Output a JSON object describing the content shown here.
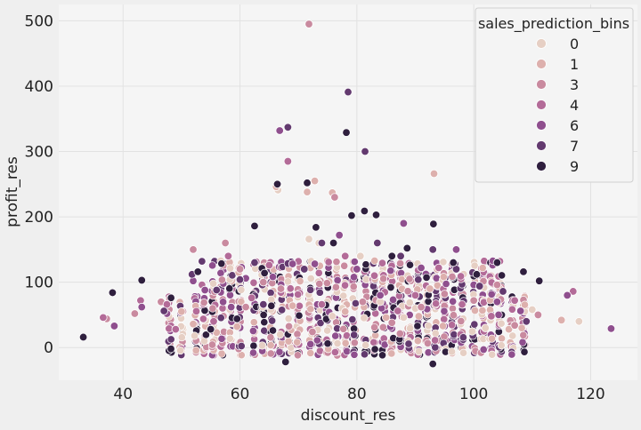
{
  "chart_data": {
    "type": "scatter",
    "title": "",
    "xlabel": "discount_res",
    "ylabel": "profit_res",
    "xlim": [
      29,
      128
    ],
    "ylim": [
      -50,
      525
    ],
    "xticks": [
      40,
      60,
      80,
      100,
      120
    ],
    "yticks": [
      0,
      100,
      200,
      300,
      400,
      500
    ],
    "grid": true,
    "legend_position": "top-right",
    "legend_title": "sales_prediction_bins",
    "colors": {
      "0": "#e6cfc4",
      "1": "#ddb0ad",
      "3": "#c98a9f",
      "4": "#b36b98",
      "6": "#8f4f8e",
      "7": "#633a6f",
      "9": "#2f1f3e"
    },
    "series": [
      {
        "name": "0",
        "points": [
          [
            66.5,
            241
          ],
          [
            71.8,
            166
          ],
          [
            73.5,
            160
          ],
          [
            75.8,
            48
          ],
          [
            77.5,
            60
          ],
          [
            80.6,
            140
          ],
          [
            84,
            70
          ],
          [
            88,
            46
          ],
          [
            90,
            60
          ],
          [
            102,
            30
          ],
          [
            110,
            58
          ],
          [
            118,
            40
          ]
        ]
      },
      {
        "name": "1",
        "points": [
          [
            50,
            55
          ],
          [
            52,
            36
          ],
          [
            56,
            23
          ],
          [
            59.5,
            32
          ],
          [
            66.2,
            246
          ],
          [
            69,
            64
          ],
          [
            71.5,
            238
          ],
          [
            72.8,
            255
          ],
          [
            75.8,
            237
          ],
          [
            78,
            55
          ],
          [
            85,
            46
          ],
          [
            92.5,
            90
          ],
          [
            93.2,
            266
          ],
          [
            106,
            28
          ],
          [
            115,
            42
          ]
        ]
      },
      {
        "name": "3",
        "points": [
          [
            37.2,
            44
          ],
          [
            42,
            52
          ],
          [
            46.5,
            70
          ],
          [
            52,
            150
          ],
          [
            57.5,
            160
          ],
          [
            60,
            120
          ],
          [
            61,
            62
          ],
          [
            64,
            100
          ],
          [
            67,
            90
          ],
          [
            71.8,
            495
          ],
          [
            72.4,
            24
          ],
          [
            76.2,
            230
          ],
          [
            81,
            70
          ],
          [
            86,
            38
          ],
          [
            91,
            62
          ],
          [
            95,
            82
          ],
          [
            100,
            72
          ],
          [
            104,
            96
          ],
          [
            107,
            34
          ],
          [
            111,
            50
          ]
        ]
      },
      {
        "name": "4",
        "points": [
          [
            36.6,
            46
          ],
          [
            43,
            72
          ],
          [
            47.5,
            66
          ],
          [
            49,
            28
          ],
          [
            53.5,
            96
          ],
          [
            55.5,
            40
          ],
          [
            58,
            140
          ],
          [
            62,
            76
          ],
          [
            65,
            126
          ],
          [
            68.2,
            285
          ],
          [
            70,
            132
          ],
          [
            74,
            66
          ],
          [
            78,
            140
          ],
          [
            83,
            110
          ],
          [
            87,
            56
          ],
          [
            90,
            80
          ],
          [
            94,
            122
          ],
          [
            98,
            66
          ],
          [
            103,
            48
          ],
          [
            107,
            72
          ],
          [
            117,
            86
          ]
        ]
      },
      {
        "name": "6",
        "points": [
          [
            38.5,
            33
          ],
          [
            43.2,
            62
          ],
          [
            47.5,
            52
          ],
          [
            52,
            102
          ],
          [
            54,
            88
          ],
          [
            58.5,
            62
          ],
          [
            61,
            106
          ],
          [
            66.8,
            332
          ],
          [
            69,
            128
          ],
          [
            72.8,
            128
          ],
          [
            77,
            172
          ],
          [
            80,
            120
          ],
          [
            84,
            80
          ],
          [
            88,
            190
          ],
          [
            91,
            122
          ],
          [
            97,
            150
          ],
          [
            100,
            96
          ],
          [
            104,
            70
          ],
          [
            108,
            56
          ],
          [
            116,
            80
          ],
          [
            123.5,
            29
          ]
        ]
      },
      {
        "name": "7",
        "points": [
          [
            47,
            56
          ],
          [
            51.8,
            112
          ],
          [
            53.5,
            132
          ],
          [
            56,
            88
          ],
          [
            60,
            104
          ],
          [
            62.5,
            130
          ],
          [
            64,
            66
          ],
          [
            66.5,
            250
          ],
          [
            68.2,
            337
          ],
          [
            71,
            120
          ],
          [
            74,
            160
          ],
          [
            78.5,
            391
          ],
          [
            81.4,
            300
          ],
          [
            83.5,
            160
          ],
          [
            87.5,
            140
          ],
          [
            90.5,
            104
          ],
          [
            93,
            150
          ],
          [
            97,
            120
          ],
          [
            101,
            94
          ],
          [
            105,
            86
          ],
          [
            109,
            40
          ]
        ]
      },
      {
        "name": "9",
        "points": [
          [
            33.2,
            16
          ],
          [
            38.2,
            84
          ],
          [
            43.2,
            103
          ],
          [
            48.2,
            -2
          ],
          [
            52.8,
            116
          ],
          [
            55,
            28
          ],
          [
            59.5,
            44
          ],
          [
            62.5,
            186
          ],
          [
            64.2,
            114
          ],
          [
            66.4,
            250
          ],
          [
            67.8,
            -22
          ],
          [
            71.5,
            252
          ],
          [
            73,
            184
          ],
          [
            76,
            160
          ],
          [
            78.2,
            329
          ],
          [
            79.1,
            202
          ],
          [
            81.3,
            209
          ],
          [
            83.3,
            203
          ],
          [
            86,
            140
          ],
          [
            88.6,
            152
          ],
          [
            93.1,
            189
          ],
          [
            93,
            -25
          ],
          [
            96.5,
            130
          ],
          [
            100.5,
            112
          ],
          [
            104,
            130
          ],
          [
            108.5,
            116
          ],
          [
            111.2,
            102
          ]
        ]
      }
    ]
  }
}
